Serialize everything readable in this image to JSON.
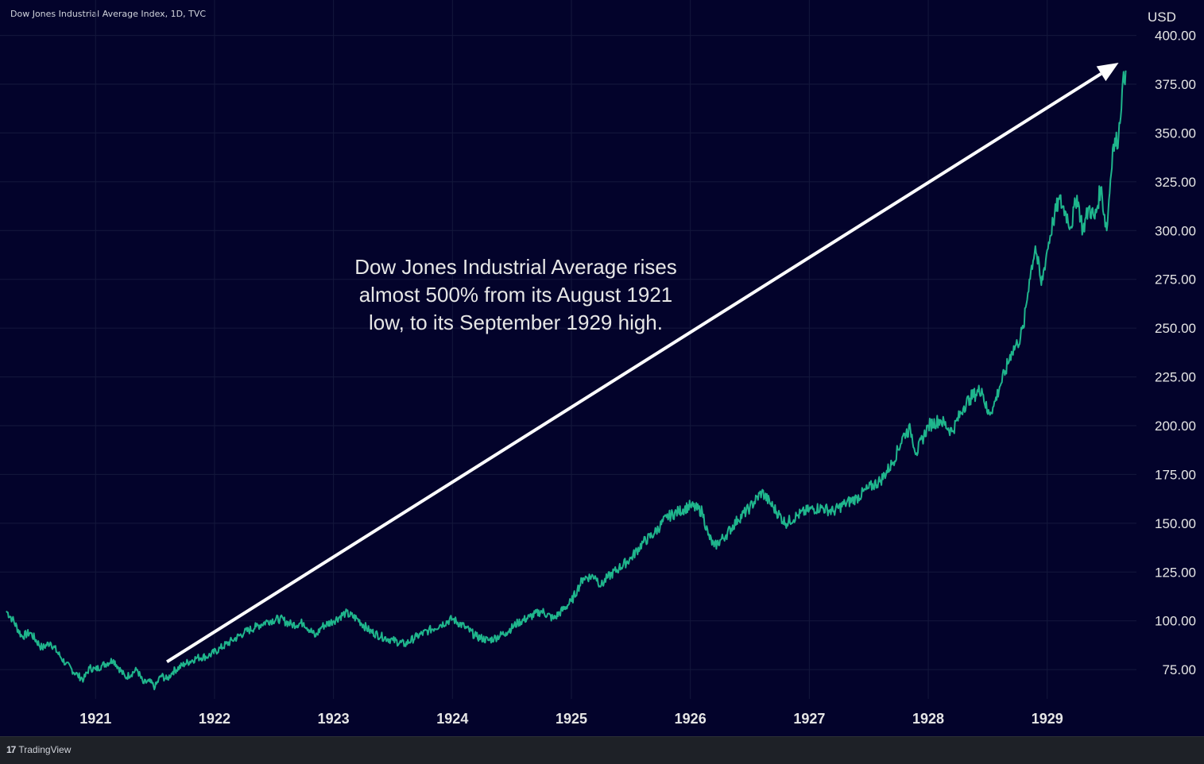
{
  "header": {
    "title": "Dow Jones Industrial Average Index, 1D, TVC",
    "currency": "USD"
  },
  "annotation": {
    "lines": [
      "Dow Jones Industrial Average rises",
      "almost 500% from its August 1921",
      "low, to its September 1929 high."
    ],
    "arrow_from": {
      "year": 1921.6,
      "value": 79
    },
    "arrow_to": {
      "year": 1929.6,
      "value": 386
    }
  },
  "footer": {
    "brand": "TradingView",
    "brand_mark": "17"
  },
  "colors": {
    "background": "#03032b",
    "line": "#1fb58c",
    "grid": "#14183c",
    "text": "#e6e6e6",
    "arrow": "#ffffff"
  },
  "chart_data": {
    "type": "line",
    "title": "Dow Jones Industrial Average Index, 1D, TVC",
    "xlabel": "",
    "ylabel": "USD",
    "xlim": [
      1920.25,
      1929.75
    ],
    "ylim": [
      60,
      410
    ],
    "y_ticks": [
      75,
      100,
      125,
      150,
      175,
      200,
      225,
      250,
      275,
      300,
      325,
      350,
      375,
      400
    ],
    "y_tick_labels": [
      "75.00",
      "100.00",
      "125.00",
      "150.00",
      "175.00",
      "200.00",
      "225.00",
      "250.00",
      "275.00",
      "300.00",
      "325.00",
      "350.00",
      "375.00",
      "400.00"
    ],
    "x_ticks": [
      1921,
      1922,
      1923,
      1924,
      1925,
      1926,
      1927,
      1928,
      1929
    ],
    "x_tick_labels": [
      "1921",
      "1922",
      "1923",
      "1924",
      "1925",
      "1926",
      "1927",
      "1928",
      "1929"
    ],
    "grid": true,
    "series": [
      {
        "x": [
          1920.25,
          1920.3,
          1920.38,
          1920.45,
          1920.55,
          1920.62,
          1920.7,
          1920.75,
          1920.85,
          1920.9,
          1920.95,
          1921.0,
          1921.05,
          1921.15,
          1921.25,
          1921.35,
          1921.4,
          1921.45,
          1921.5,
          1921.55,
          1921.6,
          1921.65,
          1921.75,
          1921.85,
          1921.95,
          1922.05,
          1922.15,
          1922.25,
          1922.35,
          1922.45,
          1922.55,
          1922.65,
          1922.75,
          1922.85,
          1922.9,
          1923.0,
          1923.1,
          1923.2,
          1923.3,
          1923.4,
          1923.5,
          1923.6,
          1923.7,
          1923.8,
          1923.9,
          1924.0,
          1924.1,
          1924.2,
          1924.3,
          1924.35,
          1924.45,
          1924.55,
          1924.65,
          1924.75,
          1924.85,
          1925.0,
          1925.05,
          1925.1,
          1925.2,
          1925.25,
          1925.3,
          1925.4,
          1925.5,
          1925.6,
          1925.7,
          1925.8,
          1925.9,
          1926.0,
          1926.1,
          1926.15,
          1926.2,
          1926.3,
          1926.4,
          1926.5,
          1926.6,
          1926.7,
          1926.8,
          1926.9,
          1927.0,
          1927.1,
          1927.2,
          1927.3,
          1927.4,
          1927.5,
          1927.6,
          1927.7,
          1927.8,
          1927.85,
          1927.9,
          1928.0,
          1928.1,
          1928.2,
          1928.3,
          1928.35,
          1928.45,
          1928.5,
          1928.55,
          1928.6,
          1928.65,
          1928.7,
          1928.75,
          1928.8,
          1928.85,
          1928.9,
          1928.95,
          1929.0,
          1929.05,
          1929.1,
          1929.15,
          1929.2,
          1929.25,
          1929.3,
          1929.35,
          1929.4,
          1929.45,
          1929.5,
          1929.55,
          1929.6,
          1929.63,
          1929.66
        ],
        "y": [
          105,
          101,
          92,
          94,
          86,
          89,
          82,
          78,
          72,
          70,
          76,
          75,
          77,
          80,
          71,
          75,
          68,
          69,
          66,
          72,
          70,
          74,
          78,
          81,
          82,
          86,
          90,
          94,
          97,
          100,
          101,
          98,
          99,
          92,
          97,
          100,
          104,
          101,
          95,
          92,
          90,
          88,
          92,
          95,
          98,
          101,
          97,
          92,
          90,
          91,
          94,
          99,
          102,
          105,
          101,
          110,
          116,
          122,
          123,
          118,
          122,
          127,
          132,
          140,
          145,
          153,
          156,
          159,
          156,
          144,
          138,
          144,
          152,
          158,
          166,
          158,
          150,
          154,
          157,
          158,
          156,
          160,
          163,
          168,
          172,
          181,
          196,
          198,
          186,
          200,
          203,
          197,
          210,
          214,
          219,
          206,
          210,
          220,
          228,
          238,
          242,
          250,
          275,
          292,
          272,
          290,
          305,
          316,
          310,
          302,
          318,
          300,
          312,
          306,
          322,
          300,
          342,
          348,
          372,
          382
        ]
      }
    ]
  }
}
